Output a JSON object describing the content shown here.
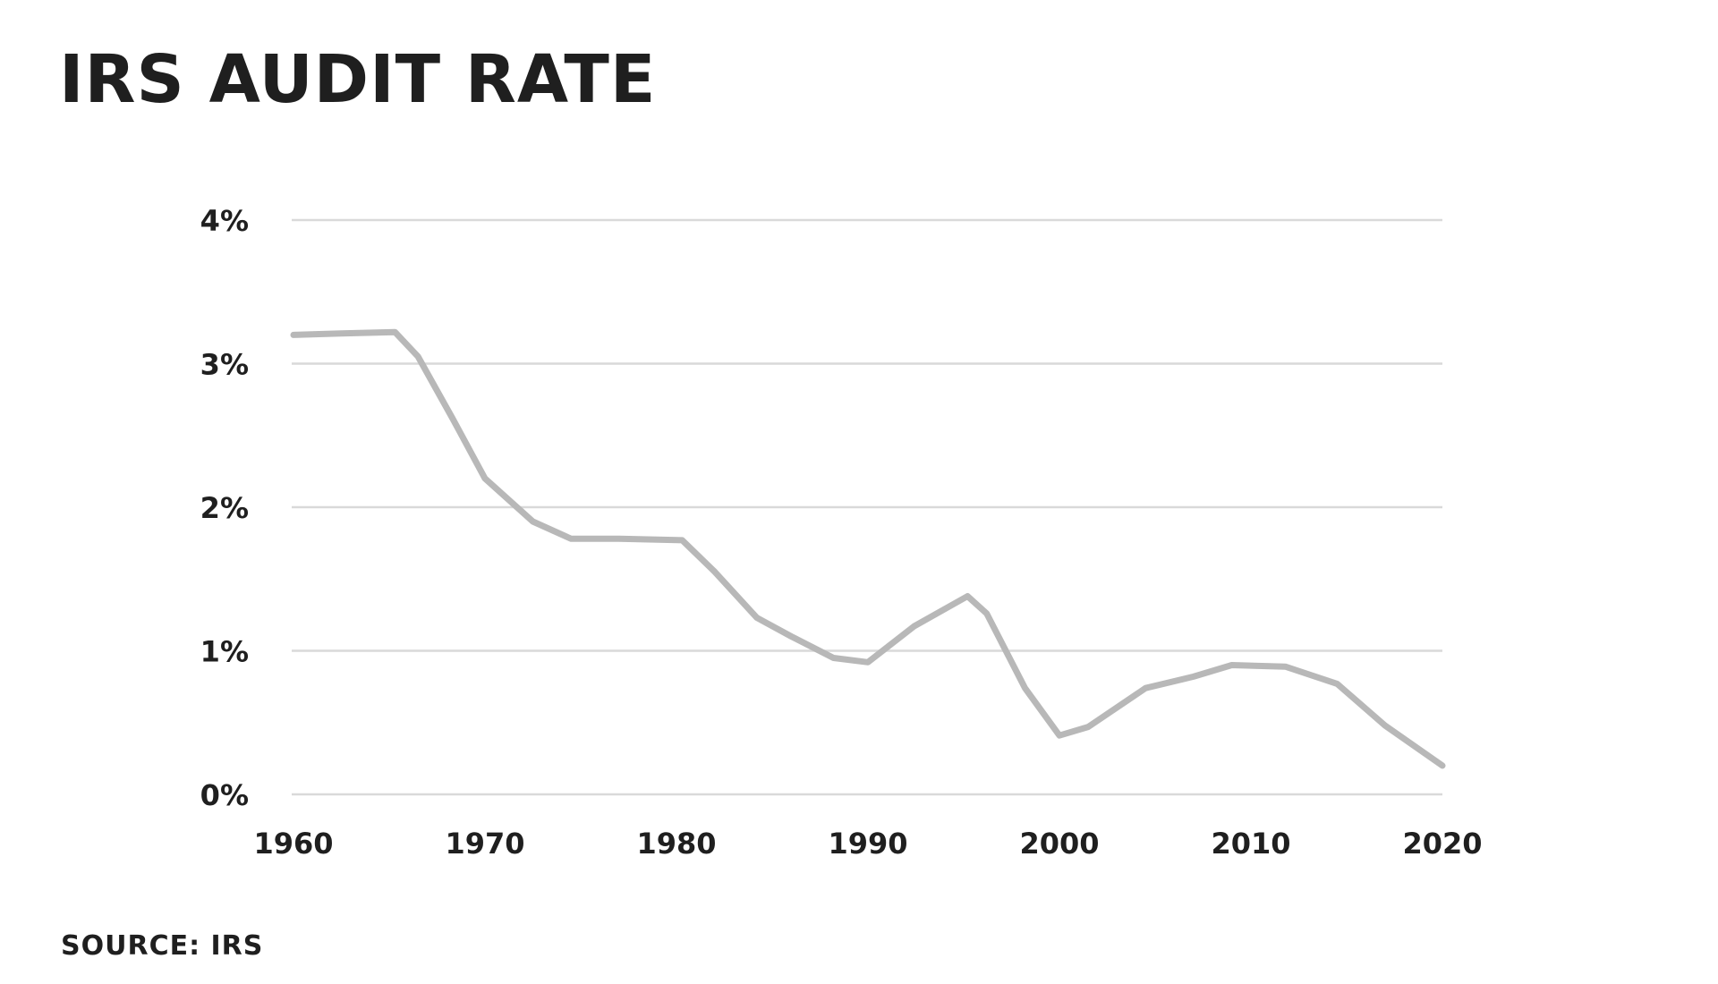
{
  "chart_data": {
    "type": "line",
    "title": "IRS AUDIT RATE",
    "source": "SOURCE: IRS",
    "xlabel": "",
    "ylabel": "",
    "xlim": [
      1960,
      2020
    ],
    "ylim": [
      0,
      4
    ],
    "x_ticks": [
      1960,
      1970,
      1980,
      1990,
      2000,
      2010,
      2020
    ],
    "y_ticks": [
      0,
      1,
      2,
      3,
      4
    ],
    "y_tick_labels": [
      "0%",
      "1%",
      "2%",
      "3%",
      "4%"
    ],
    "grid": true,
    "line_color": "#b8b8b8",
    "grid_color": "#d9d9d9",
    "series": [
      {
        "x": [
          1960,
          1962.5,
          1965.3,
          1966.5,
          1968.3,
          1970,
          1972.5,
          1974.5,
          1977,
          1980.3,
          1982,
          1984.2,
          1986,
          1988.2,
          1990,
          1992.4,
          1995.2,
          1996.2,
          1998.2,
          2000,
          2001.5,
          2004.5,
          2007,
          2009,
          2011.8,
          2014.5,
          2017,
          2020
        ],
        "y": [
          3.2,
          3.21,
          3.22,
          3.05,
          2.62,
          2.2,
          1.9,
          1.78,
          1.78,
          1.77,
          1.55,
          1.23,
          1.1,
          0.95,
          0.92,
          1.17,
          1.38,
          1.26,
          0.74,
          0.41,
          0.47,
          0.74,
          0.82,
          0.9,
          0.89,
          0.77,
          0.48,
          0.2
        ]
      }
    ]
  }
}
